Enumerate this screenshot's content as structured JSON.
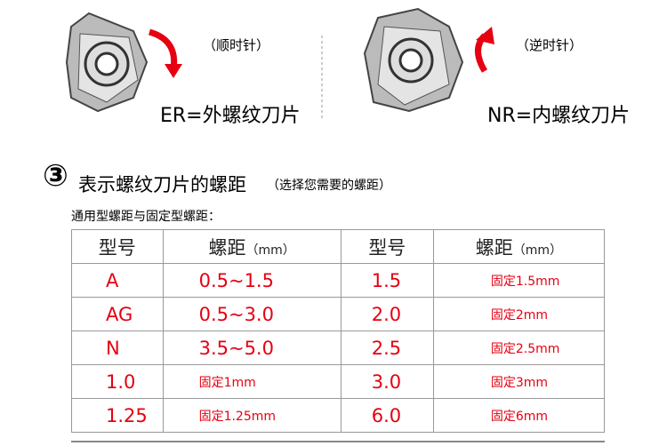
{
  "top": {
    "left": {
      "direction": "（顺时针）",
      "label": "ER=外螺纹刀片"
    },
    "right": {
      "direction": "（逆时针）",
      "label": "NR=内螺纹刀片"
    }
  },
  "section": {
    "number": "③",
    "title": "表示螺纹刀片的螺距",
    "note": "（选择您需要的螺距）",
    "subtitle": "通用型螺距与固定型螺距："
  },
  "table": {
    "headers": [
      {
        "main": "型号"
      },
      {
        "main": "螺距",
        "unit": "（mm）"
      },
      {
        "main": "型号"
      },
      {
        "main": "螺距",
        "unit": "（mm）"
      }
    ],
    "rows": [
      [
        "A",
        "0.5~1.5",
        "1.5",
        "固定1.5mm"
      ],
      [
        "AG",
        "0.5~3.0",
        "2.0",
        "固定2mm"
      ],
      [
        "N",
        "3.5~5.0",
        "2.5",
        "固定2.5mm"
      ],
      [
        "1.0",
        "固定1mm",
        "3.0",
        "固定3mm"
      ],
      [
        "1.25",
        "固定1.25mm",
        "6.0",
        "固定6mm"
      ]
    ]
  }
}
